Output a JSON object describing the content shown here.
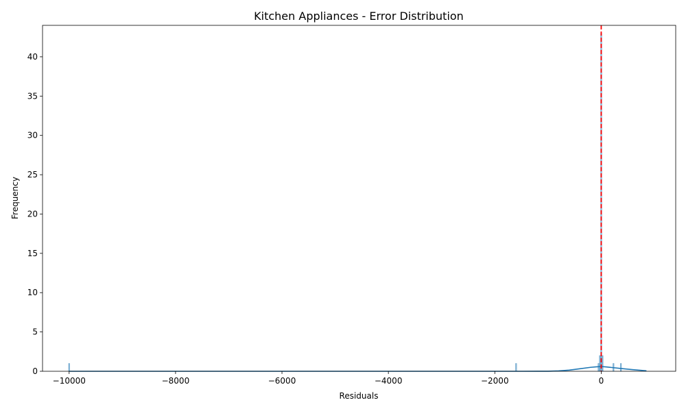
{
  "chart_data": {
    "type": "histogram",
    "title": "Kitchen Appliances - Error Distribution",
    "xlabel": "Residuals",
    "ylabel": "Frequency",
    "xlim": [
      -10500,
      1400
    ],
    "ylim": [
      0,
      44
    ],
    "x_ticks": [
      -10000,
      -8000,
      -6000,
      -4000,
      -2000,
      0
    ],
    "x_tick_labels": [
      "−10000",
      "−8000",
      "−6000",
      "−4000",
      "−2000",
      "0"
    ],
    "y_ticks": [
      0,
      5,
      10,
      15,
      20,
      25,
      30,
      35,
      40
    ],
    "y_tick_labels": [
      "0",
      "5",
      "10",
      "15",
      "20",
      "25",
      "30",
      "35",
      "40"
    ],
    "bar_width": 22,
    "bars": [
      {
        "x": -10000,
        "value": 1
      },
      {
        "x": -1600,
        "value": 1
      },
      {
        "x": -50,
        "value": 1
      },
      {
        "x": -25,
        "value": 2
      },
      {
        "x": 0,
        "value": 43
      },
      {
        "x": 25,
        "value": 2
      },
      {
        "x": 230,
        "value": 1
      },
      {
        "x": 370,
        "value": 1
      }
    ],
    "kde": {
      "x": [
        -10000,
        -8000,
        -6000,
        -4000,
        -2000,
        -1500,
        -1200,
        -1000,
        -800,
        -600,
        -400,
        -200,
        -100,
        0,
        100,
        200,
        400,
        600,
        850
      ],
      "y": [
        0.0,
        0.0,
        0.0,
        0.0,
        0.0,
        0.0,
        0.005,
        0.01,
        0.05,
        0.15,
        0.32,
        0.5,
        0.56,
        0.6,
        0.55,
        0.48,
        0.33,
        0.2,
        0.06
      ]
    },
    "reference_line": {
      "x": 0,
      "style": "dashed",
      "color": "#ff0000"
    },
    "colors": {
      "bar": "#1f77b4",
      "kde": "#1f77b4",
      "reference": "#ff0000"
    },
    "grid": false,
    "legend": "none"
  }
}
